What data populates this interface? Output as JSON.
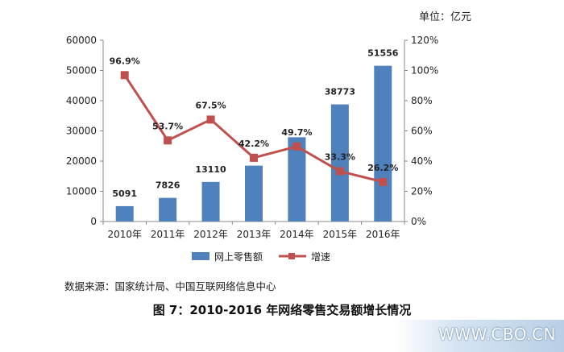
{
  "unit_label": "单位：亿元",
  "source_text": "数据来源：国家统计局、中国互联网络信息中心",
  "caption": "图 7：2010-2016 年网络零售交易额增长情况",
  "watermark": "WWW.CBO.CN",
  "colors": {
    "bar": "#4f81bd",
    "line": "#c0504d",
    "axis": "#888888"
  },
  "chart_data": {
    "type": "bar",
    "categories": [
      "2010年",
      "2011年",
      "2012年",
      "2013年",
      "2014年",
      "2015年",
      "2016年"
    ],
    "series": [
      {
        "name": "网上零售额",
        "type": "bar",
        "axis": "left",
        "values": [
          5091,
          7826,
          13110,
          18500,
          27900,
          38773,
          51556
        ],
        "labels": [
          "5091",
          "7826",
          "13110",
          "",
          "",
          "38773",
          "51556"
        ]
      },
      {
        "name": "增速",
        "type": "line",
        "axis": "right",
        "values": [
          96.9,
          53.7,
          67.5,
          42.2,
          49.7,
          33.3,
          26.2
        ],
        "labels": [
          "96.9%",
          "53.7%",
          "67.5%",
          "42.2%",
          "49.7%",
          "33.3%",
          "26.2%"
        ]
      }
    ],
    "y_left": {
      "min": 0,
      "max": 60000,
      "step": 10000,
      "ticks": [
        "0",
        "10000",
        "20000",
        "30000",
        "40000",
        "50000",
        "60000"
      ]
    },
    "y_right": {
      "min": 0,
      "max": 120,
      "step": 20,
      "ticks": [
        "0%",
        "20%",
        "40%",
        "60%",
        "80%",
        "100%",
        "120%"
      ]
    },
    "legend_position": "bottom",
    "grid": false
  }
}
